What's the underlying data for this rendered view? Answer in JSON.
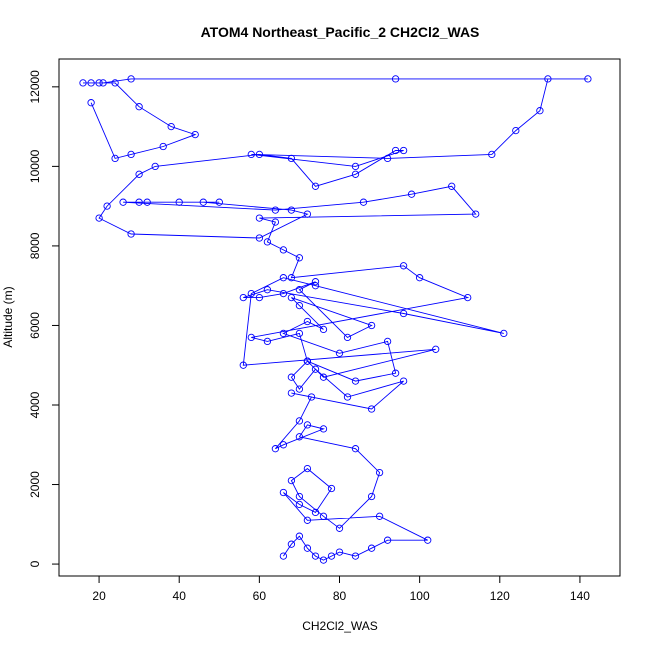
{
  "chart_data": {
    "type": "line",
    "title": "ATOM4 Northeast_Pacific_2 CH2Cl2_WAS",
    "xlabel": "CH2Cl2_WAS",
    "ylabel": "Altitude (m)",
    "xlim": [
      10,
      150
    ],
    "ylim": [
      -300,
      12700
    ],
    "x_ticks": [
      20,
      40,
      60,
      80,
      100,
      120,
      140
    ],
    "y_ticks": [
      0,
      2000,
      4000,
      6000,
      8000,
      10000,
      12000
    ],
    "line_color": "#0000ff",
    "marker": "open-circle",
    "grid": false,
    "series": [
      {
        "x": [
          66,
          68,
          70,
          72,
          74,
          76,
          78,
          80,
          84,
          88,
          92,
          102,
          90,
          72,
          66,
          70,
          74,
          78,
          72,
          68,
          70,
          76,
          80,
          88,
          90,
          84,
          70,
          72,
          76,
          66,
          64,
          70,
          73,
          68,
          88,
          96,
          82,
          74,
          70,
          68,
          72,
          84,
          94,
          92,
          80,
          66,
          72,
          76,
          70,
          68,
          88,
          82,
          70,
          74,
          66,
          60,
          56,
          62,
          96,
          121,
          74,
          66,
          58,
          56,
          104,
          76,
          72,
          70,
          62,
          58,
          112,
          100,
          96,
          68,
          70,
          66,
          62,
          64,
          60,
          114,
          108,
          98,
          86,
          64,
          26,
          30,
          32,
          40,
          50,
          46,
          68,
          72,
          60,
          28,
          20,
          22,
          30,
          34,
          60,
          68,
          74,
          84,
          94,
          96,
          84,
          58,
          92,
          118,
          124,
          130,
          132,
          142,
          94,
          28,
          21,
          16,
          18,
          20,
          24,
          30,
          38,
          44,
          36,
          28,
          24,
          18
        ],
        "y": [
          200,
          500,
          700,
          400,
          200,
          100,
          200,
          300,
          200,
          400,
          600,
          600,
          1200,
          1100,
          1800,
          1500,
          1300,
          1900,
          2400,
          2100,
          1700,
          1200,
          900,
          1700,
          2300,
          2900,
          3200,
          3500,
          3400,
          3000,
          2900,
          3600,
          4200,
          4300,
          3900,
          4600,
          4200,
          4900,
          4400,
          4700,
          5100,
          4600,
          4800,
          5600,
          5300,
          5800,
          6100,
          5900,
          6500,
          6700,
          6000,
          5700,
          6900,
          7100,
          6800,
          6700,
          6700,
          6900,
          6300,
          5800,
          7000,
          7200,
          6800,
          5000,
          5400,
          4700,
          5100,
          5800,
          5600,
          5700,
          6700,
          7200,
          7500,
          7200,
          7700,
          7900,
          8100,
          8600,
          8700,
          8800,
          9500,
          9300,
          9100,
          8900,
          9100,
          9100,
          9100,
          9100,
          9100,
          9100,
          8900,
          8800,
          8200,
          8300,
          8700,
          9000,
          9800,
          10000,
          10300,
          10200,
          9500,
          9800,
          10400,
          10400,
          10000,
          10300,
          10200,
          10300,
          10900,
          11400,
          12200,
          12200,
          12200,
          12200,
          12100,
          12100,
          12100,
          12100,
          12100,
          11500,
          11000,
          10800,
          10500,
          10300,
          10200,
          11600
        ]
      }
    ]
  }
}
